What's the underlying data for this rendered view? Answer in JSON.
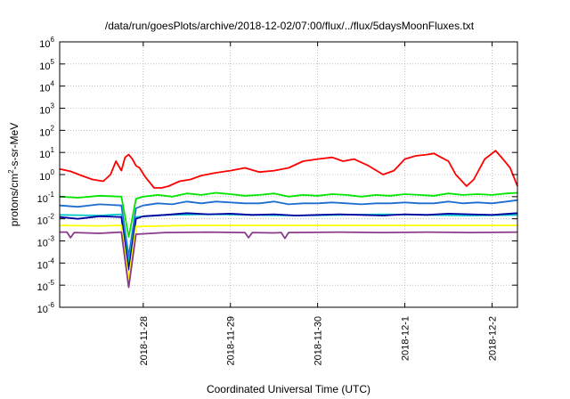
{
  "chart_data": {
    "type": "line",
    "title": "/data/run/goesPlots/archive/2018-12-02/07:00/flux/../flux/5daysMoonFluxes.txt",
    "xlabel": "Coordinated Universal Time (UTC)",
    "ylabel": "protons/cm²-s-sr-MeV",
    "ylabel_parts": {
      "pre": "protons/cm",
      "sup": "2",
      "post": "-s-sr-MeV"
    },
    "yscale": "log",
    "ylim": [
      1e-06,
      1000000.0
    ],
    "xlim": [
      "2018-11-27T01:00",
      "2018-12-02T07:00"
    ],
    "grid": true,
    "legend": "none",
    "x_ticks": [
      {
        "date": "2018-11-28",
        "label": "2018-11-28"
      },
      {
        "date": "2018-11-29",
        "label": "2018-11-29"
      },
      {
        "date": "2018-11-30",
        "label": "2018-11-30"
      },
      {
        "date": "2018-12-01",
        "label": "2018-12-1"
      },
      {
        "date": "2018-12-02",
        "label": "2018-12-2"
      }
    ],
    "y_ticks": [
      {
        "value": 1e-06,
        "base": "10",
        "exp": "-6"
      },
      {
        "value": 1e-05,
        "base": "10",
        "exp": "-5"
      },
      {
        "value": 0.0001,
        "base": "10",
        "exp": "-4"
      },
      {
        "value": 0.001,
        "base": "10",
        "exp": "-3"
      },
      {
        "value": 0.01,
        "base": "10",
        "exp": "-2"
      },
      {
        "value": 0.1,
        "base": "10",
        "exp": "-1"
      },
      {
        "value": 1.0,
        "base": "10",
        "exp": "0"
      },
      {
        "value": 10.0,
        "base": "10",
        "exp": "1"
      },
      {
        "value": 100.0,
        "base": "10",
        "exp": "2"
      },
      {
        "value": 1000.0,
        "base": "10",
        "exp": "3"
      },
      {
        "value": 10000.0,
        "base": "10",
        "exp": "4"
      },
      {
        "value": 100000.0,
        "base": "10",
        "exp": "5"
      },
      {
        "value": 1000000.0,
        "base": "10",
        "exp": "6"
      }
    ],
    "series": [
      {
        "color": "#ff0000",
        "x": [
          "2018-11-27T01:00",
          "2018-11-27T04:00",
          "2018-11-27T07:00",
          "2018-11-27T10:00",
          "2018-11-27T13:00",
          "2018-11-27T15:00",
          "2018-11-27T16:30",
          "2018-11-27T18:00",
          "2018-11-27T19:00",
          "2018-11-27T20:00",
          "2018-11-27T21:00",
          "2018-11-27T22:00",
          "2018-11-27T23:00",
          "2018-11-28T00:30",
          "2018-11-28T03:00",
          "2018-11-28T05:00",
          "2018-11-28T07:00",
          "2018-11-28T10:00",
          "2018-11-28T13:00",
          "2018-11-28T16:00",
          "2018-11-28T20:00",
          "2018-11-29T00:00",
          "2018-11-29T04:00",
          "2018-11-29T08:00",
          "2018-11-29T12:00",
          "2018-11-29T16:00",
          "2018-11-29T20:00",
          "2018-11-30T00:00",
          "2018-11-30T04:00",
          "2018-11-30T07:00",
          "2018-11-30T10:00",
          "2018-11-30T14:00",
          "2018-11-30T18:00",
          "2018-11-30T21:00",
          "2018-12-01T00:00",
          "2018-12-01T03:00",
          "2018-12-01T06:00",
          "2018-12-01T08:00",
          "2018-12-01T10:00",
          "2018-12-01T12:00",
          "2018-12-01T14:00",
          "2018-12-01T17:00",
          "2018-12-01T19:00",
          "2018-12-01T22:00",
          "2018-12-02T01:00",
          "2018-12-02T03:00",
          "2018-12-02T05:00",
          "2018-12-02T07:00"
        ],
        "y": [
          1.8,
          1.4,
          0.9,
          0.6,
          0.5,
          1.0,
          4.0,
          1.5,
          6.0,
          8.0,
          5.0,
          2.5,
          2.0,
          0.8,
          0.25,
          0.25,
          0.3,
          0.5,
          0.6,
          0.9,
          1.2,
          1.5,
          2.0,
          1.3,
          1.5,
          2.0,
          4.0,
          5.0,
          6.0,
          4.0,
          5.0,
          2.5,
          1.0,
          1.5,
          5.0,
          7.0,
          8.0,
          9.0,
          6.0,
          4.0,
          1.0,
          0.3,
          0.6,
          5.0,
          12.0,
          5.0,
          2.0,
          0.3
        ]
      },
      {
        "color": "#00e600",
        "x": [
          "2018-11-27T01:00",
          "2018-11-27T06:00",
          "2018-11-27T12:00",
          "2018-11-27T18:00",
          "2018-11-27T20:00",
          "2018-11-27T22:00",
          "2018-11-28T00:00",
          "2018-11-28T04:00",
          "2018-11-28T08:00",
          "2018-11-28T12:00",
          "2018-11-28T16:00",
          "2018-11-28T20:00",
          "2018-11-29T00:00",
          "2018-11-29T04:00",
          "2018-11-29T08:00",
          "2018-11-29T12:00",
          "2018-11-29T16:00",
          "2018-11-29T20:00",
          "2018-11-30T00:00",
          "2018-11-30T04:00",
          "2018-11-30T08:00",
          "2018-11-30T12:00",
          "2018-11-30T16:00",
          "2018-11-30T20:00",
          "2018-12-01T00:00",
          "2018-12-01T04:00",
          "2018-12-01T08:00",
          "2018-12-01T12:00",
          "2018-12-01T16:00",
          "2018-12-01T20:00",
          "2018-12-02T00:00",
          "2018-12-02T04:00",
          "2018-12-02T07:00"
        ],
        "y": [
          0.1,
          0.09,
          0.11,
          0.1,
          0.0015,
          0.08,
          0.1,
          0.12,
          0.1,
          0.14,
          0.12,
          0.15,
          0.13,
          0.11,
          0.12,
          0.14,
          0.1,
          0.12,
          0.11,
          0.13,
          0.12,
          0.1,
          0.12,
          0.11,
          0.13,
          0.12,
          0.11,
          0.14,
          0.12,
          0.13,
          0.12,
          0.14,
          0.15
        ]
      },
      {
        "color": "#1e6ed0",
        "x": [
          "2018-11-27T01:00",
          "2018-11-27T06:00",
          "2018-11-27T12:00",
          "2018-11-27T18:00",
          "2018-11-27T20:00",
          "2018-11-27T22:00",
          "2018-11-28T00:00",
          "2018-11-28T04:00",
          "2018-11-28T08:00",
          "2018-11-28T12:00",
          "2018-11-28T16:00",
          "2018-11-28T20:00",
          "2018-11-29T00:00",
          "2018-11-29T04:00",
          "2018-11-29T08:00",
          "2018-11-29T12:00",
          "2018-11-29T16:00",
          "2018-11-29T20:00",
          "2018-11-30T00:00",
          "2018-11-30T04:00",
          "2018-11-30T08:00",
          "2018-11-30T12:00",
          "2018-11-30T16:00",
          "2018-11-30T20:00",
          "2018-12-01T00:00",
          "2018-12-01T04:00",
          "2018-12-01T08:00",
          "2018-12-01T12:00",
          "2018-12-01T16:00",
          "2018-12-01T20:00",
          "2018-12-02T00:00",
          "2018-12-02T04:00",
          "2018-12-02T07:00"
        ],
        "y": [
          0.04,
          0.035,
          0.045,
          0.04,
          0.0002,
          0.03,
          0.04,
          0.05,
          0.045,
          0.06,
          0.05,
          0.06,
          0.055,
          0.05,
          0.05,
          0.06,
          0.045,
          0.05,
          0.05,
          0.055,
          0.05,
          0.045,
          0.05,
          0.05,
          0.055,
          0.05,
          0.05,
          0.06,
          0.05,
          0.055,
          0.05,
          0.06,
          0.07
        ]
      },
      {
        "color": "#00c8c8",
        "x": [
          "2018-11-27T01:00",
          "2018-11-27T12:00",
          "2018-11-27T18:00",
          "2018-11-27T20:00",
          "2018-11-27T22:00",
          "2018-11-28T06:00",
          "2018-11-28T18:00",
          "2018-11-29T06:00",
          "2018-11-29T18:00",
          "2018-11-30T06:00",
          "2018-11-30T18:00",
          "2018-12-01T06:00",
          "2018-12-01T18:00",
          "2018-12-02T07:00"
        ],
        "y": [
          0.015,
          0.014,
          0.016,
          0.0001,
          0.012,
          0.015,
          0.016,
          0.015,
          0.014,
          0.015,
          0.016,
          0.015,
          0.014,
          0.015
        ]
      },
      {
        "color": "#0000a0",
        "x": [
          "2018-11-27T01:00",
          "2018-11-27T06:00",
          "2018-11-27T12:00",
          "2018-11-27T18:00",
          "2018-11-27T20:00",
          "2018-11-27T22:00",
          "2018-11-28T00:00",
          "2018-11-28T06:00",
          "2018-11-28T12:00",
          "2018-11-28T18:00",
          "2018-11-29T00:00",
          "2018-11-29T06:00",
          "2018-11-29T12:00",
          "2018-11-29T18:00",
          "2018-11-30T00:00",
          "2018-11-30T06:00",
          "2018-11-30T12:00",
          "2018-11-30T18:00",
          "2018-12-01T00:00",
          "2018-12-01T06:00",
          "2018-12-01T12:00",
          "2018-12-01T18:00",
          "2018-12-02T00:00",
          "2018-12-02T07:00"
        ],
        "y": [
          0.012,
          0.01,
          0.013,
          0.012,
          5e-05,
          0.01,
          0.013,
          0.015,
          0.018,
          0.016,
          0.017,
          0.015,
          0.016,
          0.014,
          0.015,
          0.016,
          0.015,
          0.014,
          0.016,
          0.015,
          0.017,
          0.016,
          0.015,
          0.018
        ]
      },
      {
        "color": "#ffff00",
        "x": [
          "2018-11-27T01:00",
          "2018-11-27T12:00",
          "2018-11-27T18:00",
          "2018-11-27T20:00",
          "2018-11-27T22:00",
          "2018-11-28T12:00",
          "2018-11-29T12:00",
          "2018-11-30T12:00",
          "2018-12-01T12:00",
          "2018-12-02T07:00"
        ],
        "y": [
          0.005,
          0.0048,
          0.005,
          2e-05,
          0.0045,
          0.005,
          0.005,
          0.005,
          0.005,
          0.005
        ]
      },
      {
        "color": "#8b3a8b",
        "x": [
          "2018-11-27T01:00",
          "2018-11-27T03:00",
          "2018-11-27T04:00",
          "2018-11-27T05:00",
          "2018-11-27T12:00",
          "2018-11-27T18:00",
          "2018-11-27T20:00",
          "2018-11-27T22:00",
          "2018-11-28T06:00",
          "2018-11-28T18:00",
          "2018-11-29T04:00",
          "2018-11-29T05:00",
          "2018-11-29T06:00",
          "2018-11-29T12:00",
          "2018-11-29T14:00",
          "2018-11-29T15:00",
          "2018-11-29T16:00",
          "2018-11-30T06:00",
          "2018-11-30T18:00",
          "2018-12-01T06:00",
          "2018-12-01T18:00",
          "2018-12-02T07:00"
        ],
        "y": [
          0.0025,
          0.0025,
          0.0014,
          0.0024,
          0.0022,
          0.0025,
          8e-06,
          0.002,
          0.0024,
          0.0025,
          0.0024,
          0.0014,
          0.0024,
          0.0023,
          0.0024,
          0.0013,
          0.0024,
          0.0025,
          0.0024,
          0.0025,
          0.0024,
          0.0025
        ]
      }
    ]
  }
}
